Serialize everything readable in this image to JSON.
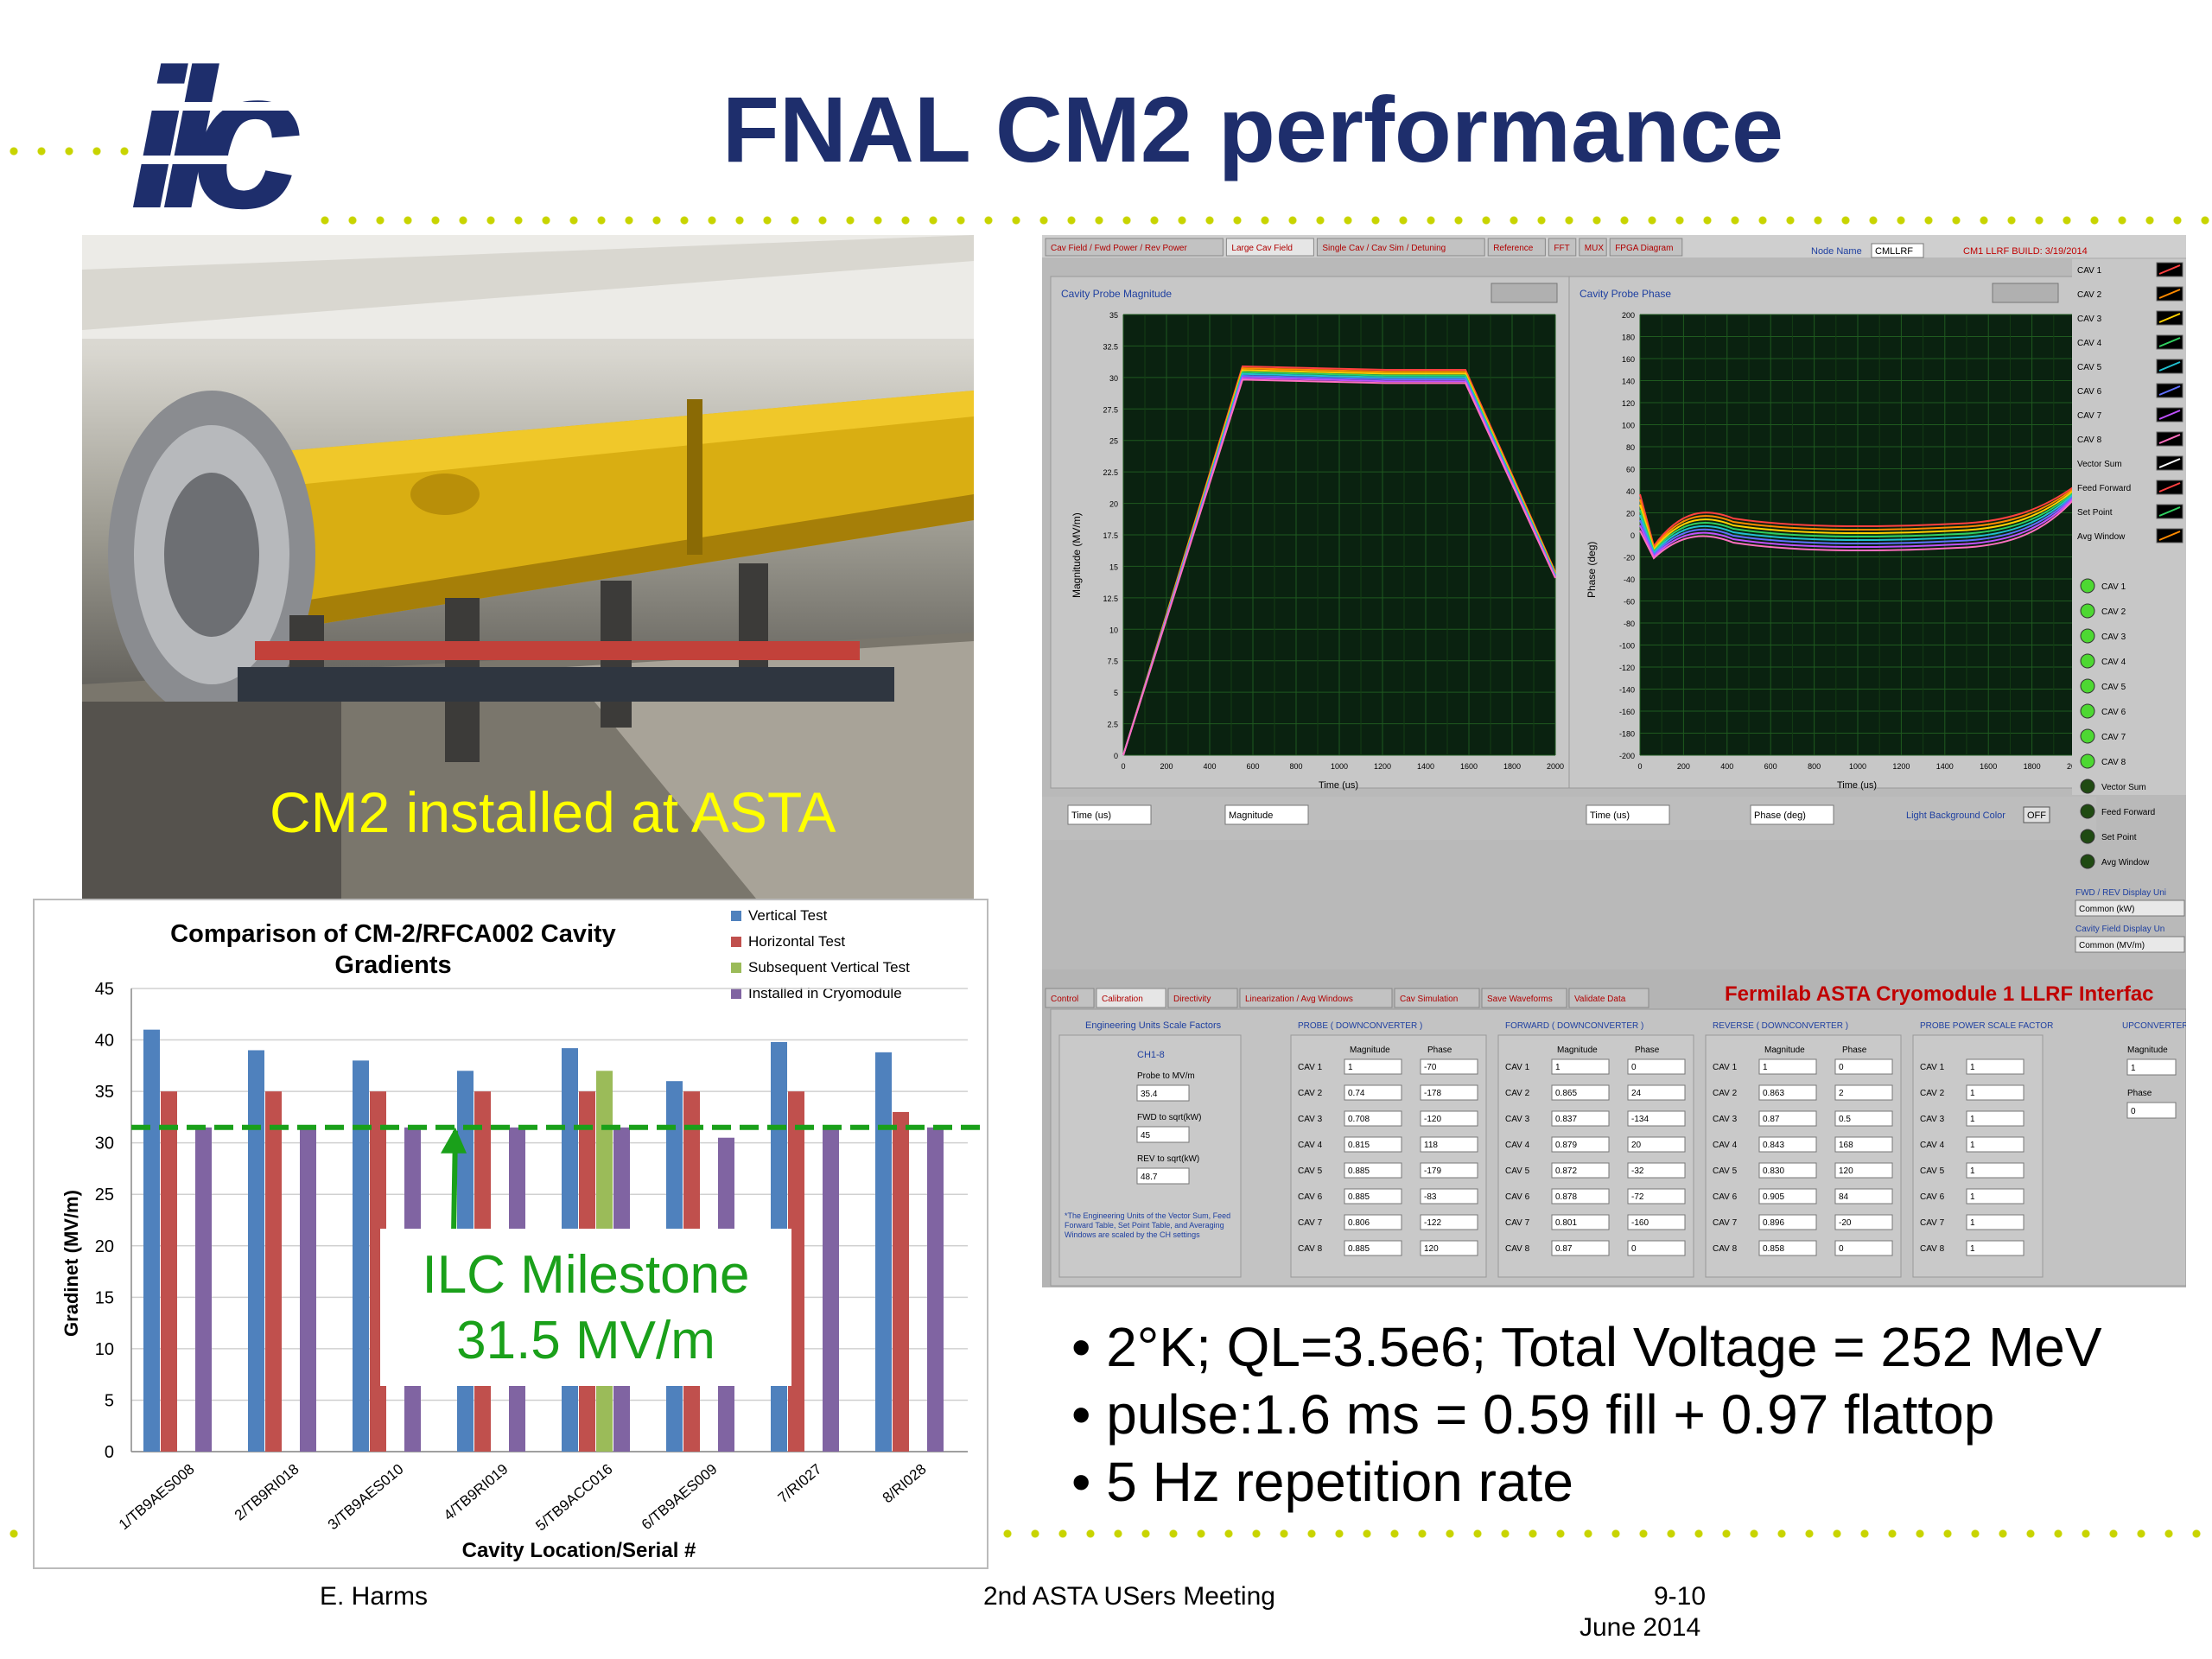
{
  "slide": {
    "title": "FNAL CM2 performance",
    "logo_text": "ilc",
    "photo_caption": "CM2 installed at ASTA",
    "bullets": [
      "2°K; QL=3.5e6; Total Voltage = 252 MeV",
      "pulse:1.6 ms = 0.59 fill + 0.97 flattop",
      "5 Hz repetition rate"
    ],
    "footer": {
      "author": "E. Harms",
      "event": "2nd ASTA USers Meeting",
      "date_line1": "9-10",
      "date_line2": "June 2014"
    },
    "milestone_line1": "ILC Milestone",
    "milestone_line2": "31.5 MV/m",
    "colors": {
      "title": "#1e2e6c",
      "dots": "#c8d400",
      "caption": "#ffff00",
      "milestone": "#1aa01a"
    }
  },
  "labview": {
    "tabs": [
      "Cav Field / Fwd Power / Rev Power",
      "Large Cav Field",
      "Single Cav / Cav Sim / Detuning",
      "Reference",
      "FFT",
      "MUX",
      "FPGA Diagram"
    ],
    "node_name_label": "Node Name",
    "node_name_value": "CMLLRF",
    "build_label": "CM1 LLRF BUILD: 3/19/2014",
    "graph1_title": "Cavity Probe Magnitude",
    "graph2_title": "Cavity Probe Phase",
    "graph1_ylabel": "Magnitude (MV/m)",
    "graph2_ylabel": "Phase (deg)",
    "xlabel": "Time (us)",
    "graph1_yticks": [
      "35",
      "32.5",
      "30",
      "27.5",
      "25",
      "22.5",
      "20",
      "17.5",
      "15",
      "12.5",
      "10",
      "7.5",
      "5",
      "2.5",
      "0"
    ],
    "graph2_yticks": [
      "200",
      "180",
      "160",
      "140",
      "120",
      "100",
      "80",
      "60",
      "40",
      "20",
      "0",
      "-20",
      "-40",
      "-60",
      "-80",
      "-100",
      "-120",
      "-140",
      "-160",
      "-180",
      "-200"
    ],
    "xticks": [
      "0",
      "200",
      "400",
      "600",
      "800",
      "1000",
      "1200",
      "1400",
      "1600",
      "1800",
      "2000"
    ],
    "legend": [
      "CAV 1",
      "CAV 2",
      "CAV 3",
      "CAV 4",
      "CAV 5",
      "CAV 6",
      "CAV 7",
      "CAV 8",
      "Vector Sum",
      "Feed Forward",
      "Set Point",
      "Avg Window"
    ],
    "leds": [
      "CAV 1",
      "CAV 2",
      "CAV 3",
      "CAV 4",
      "CAV 5",
      "CAV 6",
      "CAV 7",
      "CAV 8",
      "Vector Sum",
      "Feed Forward",
      "Set Point",
      "Avg Window"
    ],
    "leds_on": 8,
    "fwd_display_label": "FWD / REV Display Uni",
    "fwd_display_value": "Common (kW)",
    "cav_display_label": "Cavity Field Display Un",
    "cav_display_value": "Common (MV/m)",
    "x_select1": "Time (us)",
    "y_select1": "Magnitude",
    "x_select2": "Time (us)",
    "y_select2": "Phase (deg)",
    "light_bg_label": "Light Background Color",
    "light_bg_value": "OFF",
    "lower_tabs": [
      "Control",
      "Calibration",
      "Directivity",
      "Linearization / Avg Windows",
      "Cav Simulation",
      "Save Waveforms",
      "Validate Data"
    ],
    "interface_title": "Fermilab ASTA Cryomodule 1 LLRF Interfac",
    "eng_units_header": "Engineering Units Scale Factors",
    "ch_label": "CH1-8",
    "probe_to_mvm_label": "Probe to MV/m",
    "probe_to_mvm_value": "35.4",
    "fwd_label": "FWD to sqrt(kW)",
    "fwd_value": "45",
    "rev_label": "REV to sqrt(kW)",
    "rev_value": "48.7",
    "note": "*The Engineering Units of the Vector Sum, Feed Forward Table, Set Point Table, and Averaging Windows are scaled by the CH settings",
    "groups": [
      {
        "header": "PROBE ( DOWNCONVERTER )",
        "col1": "Magnitude",
        "col2": "Phase",
        "rows": [
          [
            "CAV 1",
            "1",
            "-70"
          ],
          [
            "CAV 2",
            "0.74",
            "-178"
          ],
          [
            "CAV 3",
            "0.708",
            "-120"
          ],
          [
            "CAV 4",
            "0.815",
            "118"
          ],
          [
            "CAV 5",
            "0.885",
            "-179"
          ],
          [
            "CAV 6",
            "0.885",
            "-83"
          ],
          [
            "CAV 7",
            "0.806",
            "-122"
          ],
          [
            "CAV 8",
            "0.885",
            "120"
          ]
        ]
      },
      {
        "header": "FORWARD ( DOWNCONVERTER )",
        "col1": "Magnitude",
        "col2": "Phase",
        "rows": [
          [
            "CAV 1",
            "1",
            "0"
          ],
          [
            "CAV 2",
            "0.865",
            "24"
          ],
          [
            "CAV 3",
            "0.837",
            "-134"
          ],
          [
            "CAV 4",
            "0.879",
            "20"
          ],
          [
            "CAV 5",
            "0.872",
            "-32"
          ],
          [
            "CAV 6",
            "0.878",
            "-72"
          ],
          [
            "CAV 7",
            "0.801",
            "-160"
          ],
          [
            "CAV 8",
            "0.87",
            "0"
          ]
        ]
      },
      {
        "header": "REVERSE ( DOWNCONVERTER )",
        "col1": "Magnitude",
        "col2": "Phase",
        "rows": [
          [
            "CAV 1",
            "1",
            "0"
          ],
          [
            "CAV 2",
            "0.863",
            "2"
          ],
          [
            "CAV 3",
            "0.87",
            "0.5"
          ],
          [
            "CAV 4",
            "0.843",
            "168"
          ],
          [
            "CAV 5",
            "0.830",
            "120"
          ],
          [
            "CAV 6",
            "0.905",
            "84"
          ],
          [
            "CAV 7",
            "0.896",
            "-20"
          ],
          [
            "CAV 8",
            "0.858",
            "0"
          ]
        ]
      },
      {
        "header": "PROBE POWER SCALE FACTOR",
        "col1": "",
        "col2": "",
        "rows": [
          [
            "CAV 1",
            "1",
            ""
          ],
          [
            "CAV 2",
            "1",
            ""
          ],
          [
            "CAV 3",
            "1",
            ""
          ],
          [
            "CAV 4",
            "1",
            ""
          ],
          [
            "CAV 5",
            "1",
            ""
          ],
          [
            "CAV 6",
            "1",
            ""
          ],
          [
            "CAV 7",
            "1",
            ""
          ],
          [
            "CAV 8",
            "1",
            ""
          ]
        ]
      }
    ],
    "upconverter_header": "UPCONVERTER",
    "upconverter_mag_label": "Magnitude",
    "upconverter_mag_value": "1",
    "upconverter_phase_label": "Phase",
    "upconverter_phase_value": "0"
  },
  "chart_data": {
    "type": "bar",
    "title": "Comparison of CM-2/RFCA002 Cavity Gradients",
    "xlabel": "Cavity Location/Serial #",
    "ylabel": "Gradinet (MV/m)",
    "ylim": [
      0,
      45
    ],
    "yticks": [
      0,
      5,
      10,
      15,
      20,
      25,
      30,
      35,
      40,
      45
    ],
    "grid": true,
    "legend_position": "top-right",
    "categories": [
      "1/TB9AES008",
      "2/TB9RI018",
      "3/TB9AES010",
      "4/TB9RI019",
      "5/TB9ACC016",
      "6/TB9AES009",
      "7/RI027",
      "8/RI028"
    ],
    "series": [
      {
        "name": "Vertical Test",
        "color": "#4f81bd",
        "values": [
          41,
          39,
          38,
          37,
          39.2,
          36,
          39.8,
          38.8
        ]
      },
      {
        "name": "Horizontal Test",
        "color": "#c0504d",
        "values": [
          35,
          35,
          35,
          35,
          35,
          35,
          35,
          33
        ]
      },
      {
        "name": "Subsequent Vertical Test",
        "color": "#9bbb59",
        "values": [
          null,
          null,
          null,
          null,
          37,
          null,
          null,
          null
        ]
      },
      {
        "name": "Installed in Cryomodule",
        "color": "#8064a2",
        "values": [
          31.5,
          31.5,
          31.5,
          31.5,
          31.5,
          30.5,
          31.5,
          31.5
        ]
      }
    ],
    "reference_line": {
      "value": 31.5,
      "color": "#1aa01a"
    }
  }
}
